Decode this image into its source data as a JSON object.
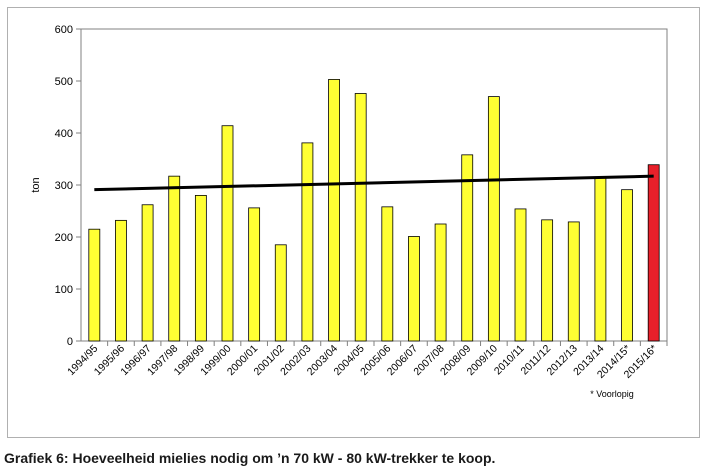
{
  "caption": "Grafiek 6: Hoeveelheid mielies nodig om ’n 70 kW - 80 kW-trekker te koop.",
  "colors": {
    "bar": "#ffff33",
    "bar_highlight": "#e8202a",
    "trend": "#000000",
    "plot_bg": "#ffffff"
  },
  "chart_data": {
    "type": "bar",
    "title": "",
    "xlabel": "",
    "ylabel": "ton",
    "ylim": [
      0,
      600
    ],
    "yticks": [
      0,
      100,
      200,
      300,
      400,
      500,
      600
    ],
    "grid": false,
    "categories": [
      "1994/95",
      "1995/96",
      "1996/97",
      "1997/98",
      "1998/99",
      "1999/00",
      "2000/01",
      "2001/02",
      "2002/03",
      "2003/04",
      "2004/05",
      "2005/06",
      "2006/07",
      "2007/08",
      "2008/09",
      "2009/10",
      "2010/11",
      "2011/12",
      "2012/13",
      "2013/14",
      "2014/15*",
      "2015/16*"
    ],
    "values": [
      215,
      232,
      262,
      317,
      280,
      414,
      256,
      185,
      381,
      503,
      476,
      258,
      201,
      225,
      358,
      470,
      254,
      233,
      229,
      314,
      291,
      339
    ],
    "highlight_index": 21,
    "trendline": {
      "start": 291,
      "end": 317
    },
    "footnote": "* Voorlopig"
  }
}
